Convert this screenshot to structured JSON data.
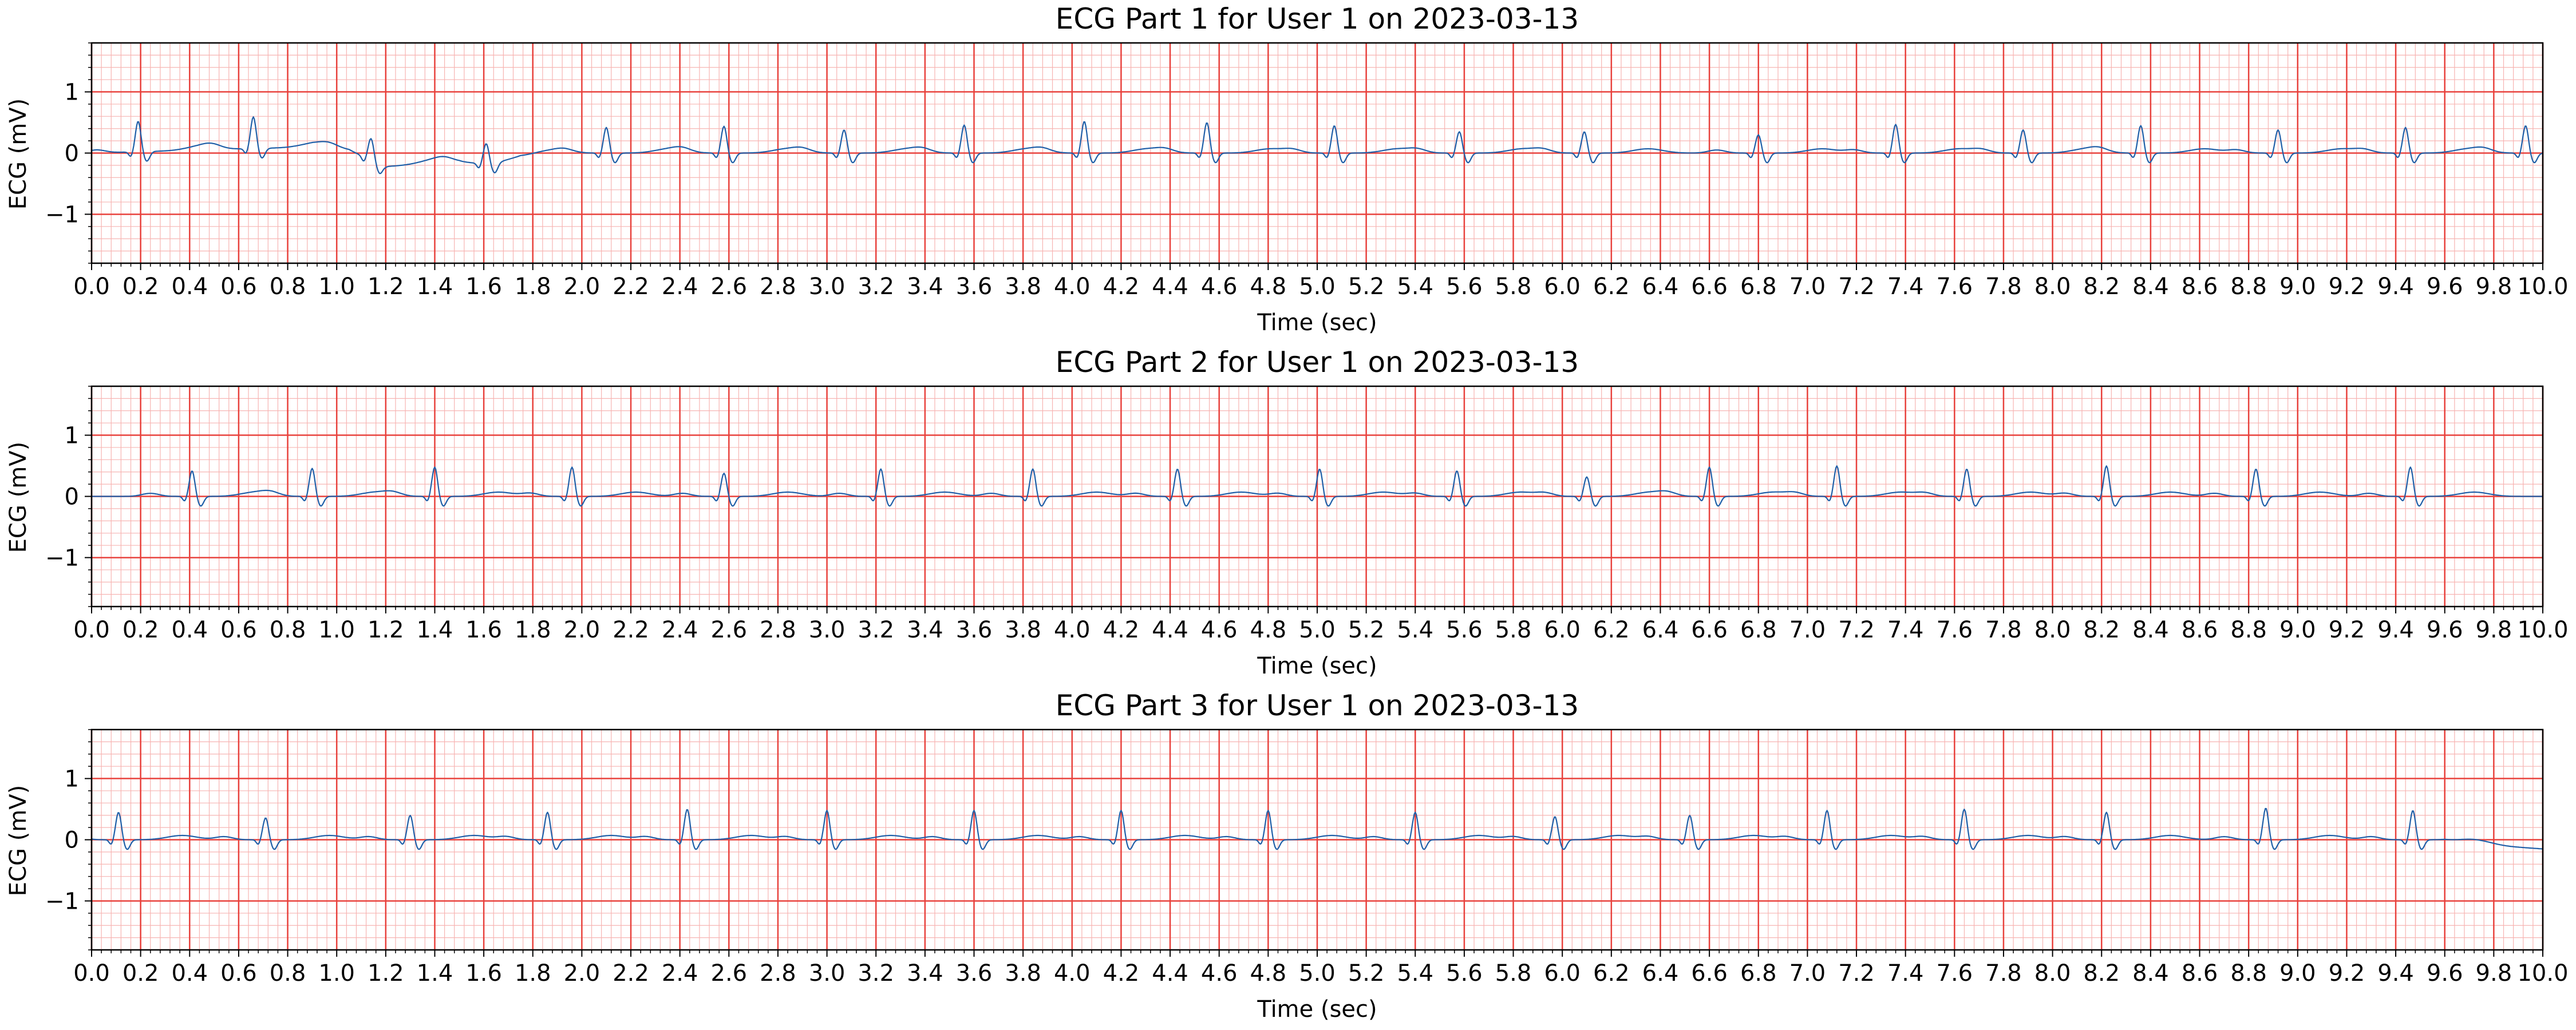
{
  "colors": {
    "background": "#ffffff",
    "grid_major": "#e8413c",
    "grid_minor": "#f7b4b2",
    "trace": "#1f5fa8",
    "axes": "#000000"
  },
  "chart_data": [
    {
      "type": "line",
      "title": "ECG Part 1 for User 1 on 2023-03-13",
      "xlabel": "Time (sec)",
      "ylabel": "ECG (mV)",
      "xlim": [
        0,
        10
      ],
      "ylim": [
        -1.8,
        1.8
      ],
      "grid": "on",
      "xticks": [
        "0.0",
        "0.2",
        "0.4",
        "0.6",
        "0.8",
        "1.0",
        "1.2",
        "1.4",
        "1.6",
        "1.8",
        "2.0",
        "2.2",
        "2.4",
        "2.6",
        "2.8",
        "3.0",
        "3.2",
        "3.4",
        "3.6",
        "3.8",
        "4.0",
        "4.2",
        "4.4",
        "4.6",
        "4.8",
        "5.0",
        "5.2",
        "5.4",
        "5.6",
        "5.8",
        "6.0",
        "6.2",
        "6.4",
        "6.6",
        "6.8",
        "7.0",
        "7.2",
        "7.4",
        "7.6",
        "7.8",
        "8.0",
        "8.2",
        "8.4",
        "8.6",
        "8.8",
        "9.0",
        "9.2",
        "9.4",
        "9.6",
        "9.8",
        "10.0"
      ],
      "yticks": [
        {
          "value": 1,
          "label": "1"
        },
        {
          "value": 0,
          "label": "0"
        },
        {
          "value": -1,
          "label": "−1"
        }
      ],
      "beats": [
        {
          "t": 0.19,
          "r": 0.5
        },
        {
          "t": 0.66,
          "r": 0.52
        },
        {
          "t": 1.14,
          "r": 0.35
        },
        {
          "t": 1.61,
          "r": 0.33
        },
        {
          "t": 2.1,
          "r": 0.42
        },
        {
          "t": 2.58,
          "r": 0.44
        },
        {
          "t": 3.07,
          "r": 0.38
        },
        {
          "t": 3.56,
          "r": 0.46
        },
        {
          "t": 4.05,
          "r": 0.52
        },
        {
          "t": 4.55,
          "r": 0.5
        },
        {
          "t": 5.07,
          "r": 0.45
        },
        {
          "t": 5.58,
          "r": 0.35
        },
        {
          "t": 6.09,
          "r": 0.35
        },
        {
          "t": 6.8,
          "r": 0.3
        },
        {
          "t": 7.36,
          "r": 0.47
        },
        {
          "t": 7.88,
          "r": 0.38
        },
        {
          "t": 8.36,
          "r": 0.45
        },
        {
          "t": 8.92,
          "r": 0.38
        },
        {
          "t": 9.44,
          "r": 0.42
        },
        {
          "t": 9.93,
          "r": 0.45
        }
      ],
      "baseline_segments": [
        {
          "t": 0.0,
          "v": 0.0
        },
        {
          "t": 0.9,
          "v": 0.1
        },
        {
          "t": 1.05,
          "v": 0.05
        },
        {
          "t": 1.2,
          "v": -0.22
        },
        {
          "t": 1.5,
          "v": -0.15
        },
        {
          "t": 1.63,
          "v": -0.18
        },
        {
          "t": 1.75,
          "v": -0.05
        },
        {
          "t": 2.0,
          "v": 0.0
        },
        {
          "t": 10.0,
          "v": 0.0
        }
      ]
    },
    {
      "type": "line",
      "title": "ECG Part 2 for User 1 on 2023-03-13",
      "xlabel": "Time (sec)",
      "ylabel": "ECG (mV)",
      "xlim": [
        0,
        10
      ],
      "ylim": [
        -1.8,
        1.8
      ],
      "grid": "on",
      "xticks": [
        "0.0",
        "0.2",
        "0.4",
        "0.6",
        "0.8",
        "1.0",
        "1.2",
        "1.4",
        "1.6",
        "1.8",
        "2.0",
        "2.2",
        "2.4",
        "2.6",
        "2.8",
        "3.0",
        "3.2",
        "3.4",
        "3.6",
        "3.8",
        "4.0",
        "4.2",
        "4.4",
        "4.6",
        "4.8",
        "5.0",
        "5.2",
        "5.4",
        "5.6",
        "5.8",
        "6.0",
        "6.2",
        "6.4",
        "6.6",
        "6.8",
        "7.0",
        "7.2",
        "7.4",
        "7.6",
        "7.8",
        "8.0",
        "8.2",
        "8.4",
        "8.6",
        "8.8",
        "9.0",
        "9.2",
        "9.4",
        "9.6",
        "9.8",
        "10.0"
      ],
      "yticks": [
        {
          "value": 1,
          "label": "1"
        },
        {
          "value": 0,
          "label": "0"
        },
        {
          "value": -1,
          "label": "−1"
        }
      ],
      "beats": [
        {
          "t": 0.41,
          "r": 0.42
        },
        {
          "t": 0.9,
          "r": 0.46
        },
        {
          "t": 1.4,
          "r": 0.48
        },
        {
          "t": 1.96,
          "r": 0.48
        },
        {
          "t": 2.58,
          "r": 0.38
        },
        {
          "t": 3.22,
          "r": 0.45
        },
        {
          "t": 3.84,
          "r": 0.45
        },
        {
          "t": 4.43,
          "r": 0.45
        },
        {
          "t": 5.01,
          "r": 0.45
        },
        {
          "t": 5.57,
          "r": 0.42
        },
        {
          "t": 6.1,
          "r": 0.32
        },
        {
          "t": 6.6,
          "r": 0.48
        },
        {
          "t": 7.12,
          "r": 0.5
        },
        {
          "t": 7.65,
          "r": 0.45
        },
        {
          "t": 8.22,
          "r": 0.5
        },
        {
          "t": 8.83,
          "r": 0.45
        },
        {
          "t": 9.46,
          "r": 0.48
        }
      ],
      "baseline_segments": [
        {
          "t": 0.0,
          "v": 0.0
        },
        {
          "t": 10.0,
          "v": 0.0
        }
      ]
    },
    {
      "type": "line",
      "title": "ECG Part 3 for User 1 on 2023-03-13",
      "xlabel": "Time (sec)",
      "ylabel": "ECG (mV)",
      "xlim": [
        0,
        10
      ],
      "ylim": [
        -1.8,
        1.8
      ],
      "grid": "on",
      "xticks": [
        "0.0",
        "0.2",
        "0.4",
        "0.6",
        "0.8",
        "1.0",
        "1.2",
        "1.4",
        "1.6",
        "1.8",
        "2.0",
        "2.2",
        "2.4",
        "2.6",
        "2.8",
        "3.0",
        "3.2",
        "3.4",
        "3.6",
        "3.8",
        "4.0",
        "4.2",
        "4.4",
        "4.6",
        "4.8",
        "5.0",
        "5.2",
        "5.4",
        "5.6",
        "5.8",
        "6.0",
        "6.2",
        "6.4",
        "6.6",
        "6.8",
        "7.0",
        "7.2",
        "7.4",
        "7.6",
        "7.8",
        "8.0",
        "8.2",
        "8.4",
        "8.6",
        "8.8",
        "9.0",
        "9.2",
        "9.4",
        "9.6",
        "9.8",
        "10.0"
      ],
      "yticks": [
        {
          "value": 1,
          "label": "1"
        },
        {
          "value": 0,
          "label": "0"
        },
        {
          "value": -1,
          "label": "−1"
        }
      ],
      "beats": [
        {
          "t": 0.11,
          "r": 0.45
        },
        {
          "t": 0.71,
          "r": 0.36
        },
        {
          "t": 1.3,
          "r": 0.4
        },
        {
          "t": 1.86,
          "r": 0.45
        },
        {
          "t": 2.43,
          "r": 0.5
        },
        {
          "t": 3.0,
          "r": 0.48
        },
        {
          "t": 3.6,
          "r": 0.48
        },
        {
          "t": 4.2,
          "r": 0.48
        },
        {
          "t": 4.8,
          "r": 0.48
        },
        {
          "t": 5.4,
          "r": 0.45
        },
        {
          "t": 5.97,
          "r": 0.38
        },
        {
          "t": 6.52,
          "r": 0.4
        },
        {
          "t": 7.08,
          "r": 0.48
        },
        {
          "t": 7.64,
          "r": 0.5
        },
        {
          "t": 8.22,
          "r": 0.45
        },
        {
          "t": 8.87,
          "r": 0.52
        },
        {
          "t": 9.47,
          "r": 0.48
        }
      ],
      "baseline_segments": [
        {
          "t": 0.0,
          "v": 0.0
        },
        {
          "t": 9.6,
          "v": 0.0
        },
        {
          "t": 9.75,
          "v": -0.08
        },
        {
          "t": 10.0,
          "v": -0.15
        }
      ]
    }
  ]
}
